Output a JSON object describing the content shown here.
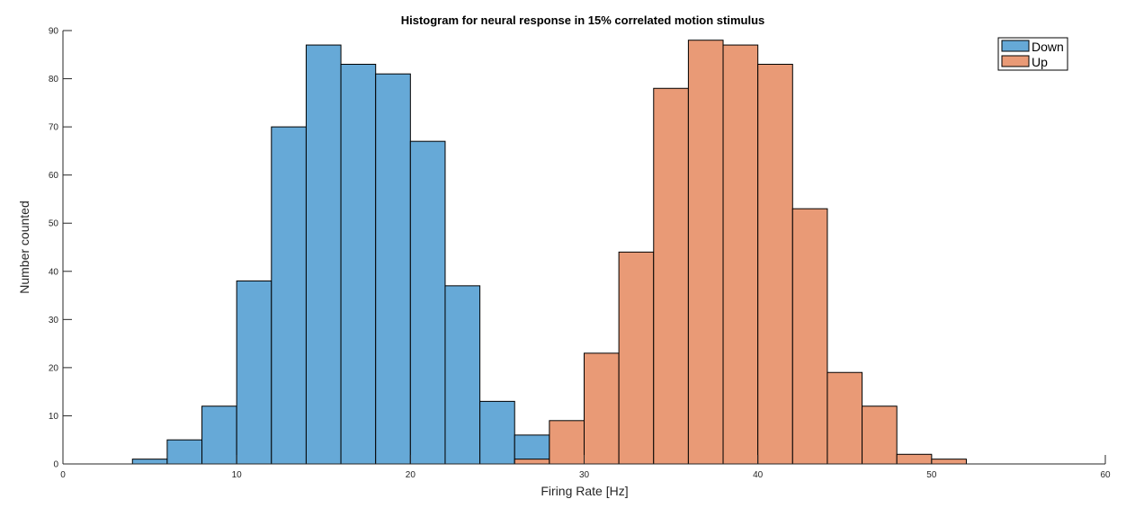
{
  "chart_data": {
    "type": "bar",
    "title": "Histogram for neural response in 15% correlated motion stimulus",
    "xlabel": "Firing Rate [Hz]",
    "ylabel": "Number counted",
    "xlim": [
      0,
      60
    ],
    "ylim": [
      0,
      90
    ],
    "xticks": [
      0,
      10,
      20,
      30,
      40,
      50,
      60
    ],
    "yticks": [
      0,
      10,
      20,
      30,
      40,
      50,
      60,
      70,
      80,
      90
    ],
    "grid": false,
    "legend_position": "top-right",
    "bin_width": 2,
    "series": [
      {
        "name": "Down",
        "color": "#66a9d7",
        "bin_starts": [
          4,
          6,
          8,
          10,
          12,
          14,
          16,
          18,
          20,
          22,
          24,
          26
        ],
        "values": [
          1,
          5,
          12,
          38,
          70,
          87,
          83,
          81,
          67,
          37,
          13,
          6
        ]
      },
      {
        "name": "Up",
        "color": "#e99a76",
        "bin_starts": [
          26,
          28,
          30,
          32,
          34,
          36,
          38,
          40,
          42,
          44,
          46,
          48,
          50
        ],
        "values": [
          1,
          9,
          23,
          44,
          78,
          88,
          87,
          83,
          53,
          19,
          12,
          2,
          1
        ]
      }
    ]
  }
}
